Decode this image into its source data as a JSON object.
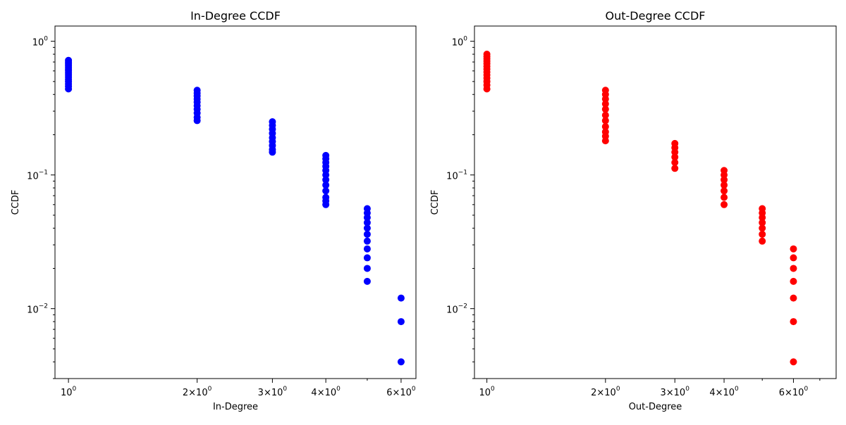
{
  "chart_data": [
    {
      "type": "scatter",
      "title": "In-Degree CCDF",
      "xlabel": "In-Degree",
      "ylabel": "CCDF",
      "xscale": "log",
      "yscale": "log",
      "xlim": [
        0.93,
        6.5
      ],
      "ylim": [
        0.003,
        1.3
      ],
      "grid": false,
      "color": "#0000ff",
      "x_ticks": [
        {
          "value": 1,
          "base": "10",
          "exp": "0"
        },
        {
          "value": 2,
          "base": "2×10",
          "exp": "0"
        },
        {
          "value": 3,
          "base": "3×10",
          "exp": "0"
        },
        {
          "value": 4,
          "base": "4×10",
          "exp": "0"
        },
        {
          "value": 6,
          "base": "6×10",
          "exp": "0"
        }
      ],
      "y_ticks": [
        {
          "value": 1,
          "base": "10",
          "exp": "0"
        },
        {
          "value": 0.1,
          "base": "10",
          "exp": "−1"
        },
        {
          "value": 0.01,
          "base": "10",
          "exp": "−2"
        }
      ],
      "points": [
        {
          "x": 1,
          "y": [
            0.72,
            0.7,
            0.68,
            0.66,
            0.64,
            0.62,
            0.6,
            0.58,
            0.56,
            0.54,
            0.52,
            0.5,
            0.48,
            0.46,
            0.44
          ]
        },
        {
          "x": 2,
          "y": [
            0.43,
            0.41,
            0.39,
            0.37,
            0.35,
            0.33,
            0.31,
            0.29,
            0.27,
            0.255
          ]
        },
        {
          "x": 3,
          "y": [
            0.25,
            0.235,
            0.22,
            0.205,
            0.19,
            0.178,
            0.166,
            0.155,
            0.148
          ]
        },
        {
          "x": 4,
          "y": [
            0.14,
            0.132,
            0.124,
            0.116,
            0.108,
            0.1,
            0.092,
            0.084,
            0.076,
            0.068,
            0.064,
            0.06
          ]
        },
        {
          "x": 5,
          "y": [
            0.056,
            0.052,
            0.048,
            0.044,
            0.04,
            0.036,
            0.032,
            0.028,
            0.024,
            0.02,
            0.016
          ]
        },
        {
          "x": 6,
          "y": [
            0.012,
            0.008,
            0.004
          ]
        }
      ]
    },
    {
      "type": "scatter",
      "title": "Out-Degree CCDF",
      "xlabel": "Out-Degree",
      "ylabel": "CCDF",
      "xscale": "log",
      "yscale": "log",
      "xlim": [
        0.93,
        7.7
      ],
      "ylim": [
        0.003,
        1.3
      ],
      "grid": false,
      "color": "#ff0000",
      "x_ticks": [
        {
          "value": 1,
          "base": "10",
          "exp": "0"
        },
        {
          "value": 2,
          "base": "2×10",
          "exp": "0"
        },
        {
          "value": 3,
          "base": "3×10",
          "exp": "0"
        },
        {
          "value": 4,
          "base": "4×10",
          "exp": "0"
        },
        {
          "value": 6,
          "base": "6×10",
          "exp": "0"
        }
      ],
      "y_ticks": [
        {
          "value": 1,
          "base": "10",
          "exp": "0"
        },
        {
          "value": 0.1,
          "base": "10",
          "exp": "−1"
        },
        {
          "value": 0.01,
          "base": "10",
          "exp": "−2"
        }
      ],
      "points": [
        {
          "x": 1,
          "y": [
            0.8,
            0.77,
            0.74,
            0.71,
            0.68,
            0.65,
            0.62,
            0.59,
            0.56,
            0.53,
            0.5,
            0.47,
            0.44
          ]
        },
        {
          "x": 2,
          "y": [
            0.43,
            0.4,
            0.37,
            0.34,
            0.31,
            0.28,
            0.255,
            0.23,
            0.21,
            0.195,
            0.18
          ]
        },
        {
          "x": 3,
          "y": [
            0.172,
            0.16,
            0.148,
            0.136,
            0.124,
            0.112
          ]
        },
        {
          "x": 4,
          "y": [
            0.108,
            0.1,
            0.092,
            0.084,
            0.076,
            0.068,
            0.06
          ]
        },
        {
          "x": 5,
          "y": [
            0.056,
            0.052,
            0.048,
            0.044,
            0.04,
            0.036,
            0.032
          ]
        },
        {
          "x": 6,
          "y": [
            0.028,
            0.024,
            0.02,
            0.016,
            0.012,
            0.008,
            0.004
          ]
        }
      ]
    }
  ]
}
